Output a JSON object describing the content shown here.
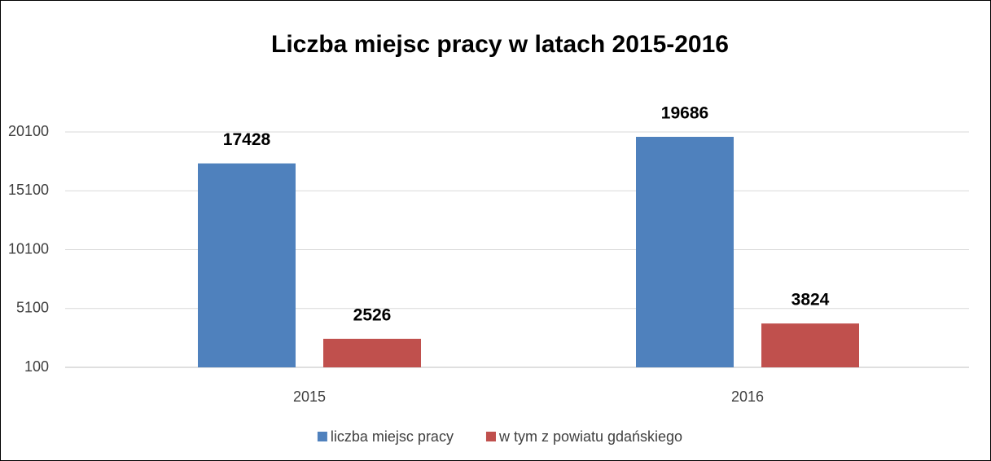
{
  "chart_data": {
    "type": "bar",
    "title": "Liczba miejsc pracy w latach 2015-2016",
    "categories": [
      "2015",
      "2016"
    ],
    "series": [
      {
        "name": "liczba miejsc pracy",
        "color": "#4f81bd",
        "values": [
          17428,
          19686
        ]
      },
      {
        "name": "w tym z powiatu gdańskiego",
        "color": "#c0504d",
        "values": [
          2526,
          3824
        ]
      }
    ],
    "ylim": [
      100,
      20100
    ],
    "yticks": [
      100,
      5100,
      10100,
      15100,
      20100
    ],
    "grid": true,
    "legend": "bottom"
  }
}
